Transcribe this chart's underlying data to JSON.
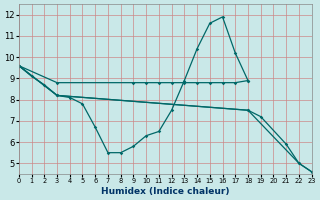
{
  "xlabel": "Humidex (Indice chaleur)",
  "x_ticks": [
    0,
    1,
    2,
    3,
    4,
    5,
    6,
    7,
    8,
    9,
    10,
    11,
    12,
    13,
    14,
    15,
    16,
    17,
    18,
    19,
    20,
    21,
    22,
    23
  ],
  "xlim": [
    0,
    23
  ],
  "ylim": [
    4.5,
    12.5
  ],
  "y_ticks": [
    5,
    6,
    7,
    8,
    9,
    10,
    11,
    12
  ],
  "background_color": "#c9e8e8",
  "grid_color": "#cc8888",
  "line_color": "#006868",
  "curve_x": [
    0,
    1,
    2,
    3,
    4,
    5,
    6,
    7,
    8,
    9,
    10,
    11,
    12,
    13,
    14,
    15,
    16,
    17,
    18
  ],
  "curve_y": [
    9.6,
    9.1,
    8.7,
    8.2,
    8.1,
    7.8,
    6.7,
    5.5,
    5.5,
    5.8,
    6.3,
    6.5,
    7.5,
    8.9,
    10.4,
    11.6,
    11.9,
    10.2,
    8.9
  ],
  "line_flat_x": [
    0,
    3,
    9,
    10,
    11,
    12,
    13,
    14,
    15,
    16,
    17,
    18
  ],
  "line_flat_y": [
    9.6,
    8.8,
    8.8,
    8.8,
    8.8,
    8.8,
    8.8,
    8.8,
    8.8,
    8.8,
    8.8,
    8.9
  ],
  "line_diag1_x": [
    0,
    3,
    18,
    19,
    21,
    22,
    23
  ],
  "line_diag1_y": [
    9.6,
    8.2,
    7.5,
    7.2,
    5.9,
    5.0,
    4.6
  ],
  "line_diag2_x": [
    0,
    3,
    18,
    22,
    23
  ],
  "line_diag2_y": [
    9.6,
    8.2,
    7.5,
    5.0,
    4.6
  ]
}
